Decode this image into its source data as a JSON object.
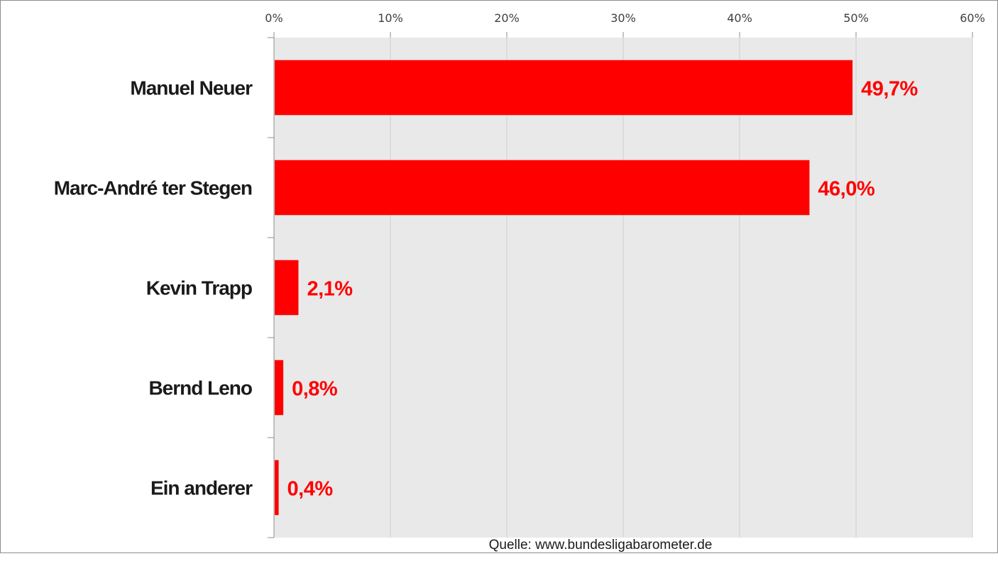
{
  "chart_data": {
    "type": "bar",
    "orientation": "horizontal",
    "categories": [
      "Manuel Neuer",
      "Marc-André ter Stegen",
      "Kevin Trapp",
      "Bernd Leno",
      "Ein anderer"
    ],
    "values": [
      49.7,
      46.0,
      2.1,
      0.8,
      0.4
    ],
    "data_labels": [
      "49,7%",
      "46,0%",
      "2,1%",
      "0,8%",
      "0,4%"
    ],
    "xlim": [
      0,
      60
    ],
    "x_ticks": [
      0,
      10,
      20,
      30,
      40,
      50,
      60
    ],
    "x_tick_labels": [
      "0%",
      "10%",
      "20%",
      "30%",
      "40%",
      "50%",
      "60%"
    ],
    "x_axis_position": "top",
    "grid": true,
    "legend": "none",
    "title": "",
    "xlabel": "",
    "ylabel": "",
    "source": "Quelle: www.bundesligabarometer.de",
    "colors": {
      "bar": "#ff0000",
      "data_label": "#ff0000",
      "plot_background": "#e9e9e9",
      "gridline": "#d0d0d0",
      "axis": "#8c8c8c"
    }
  }
}
